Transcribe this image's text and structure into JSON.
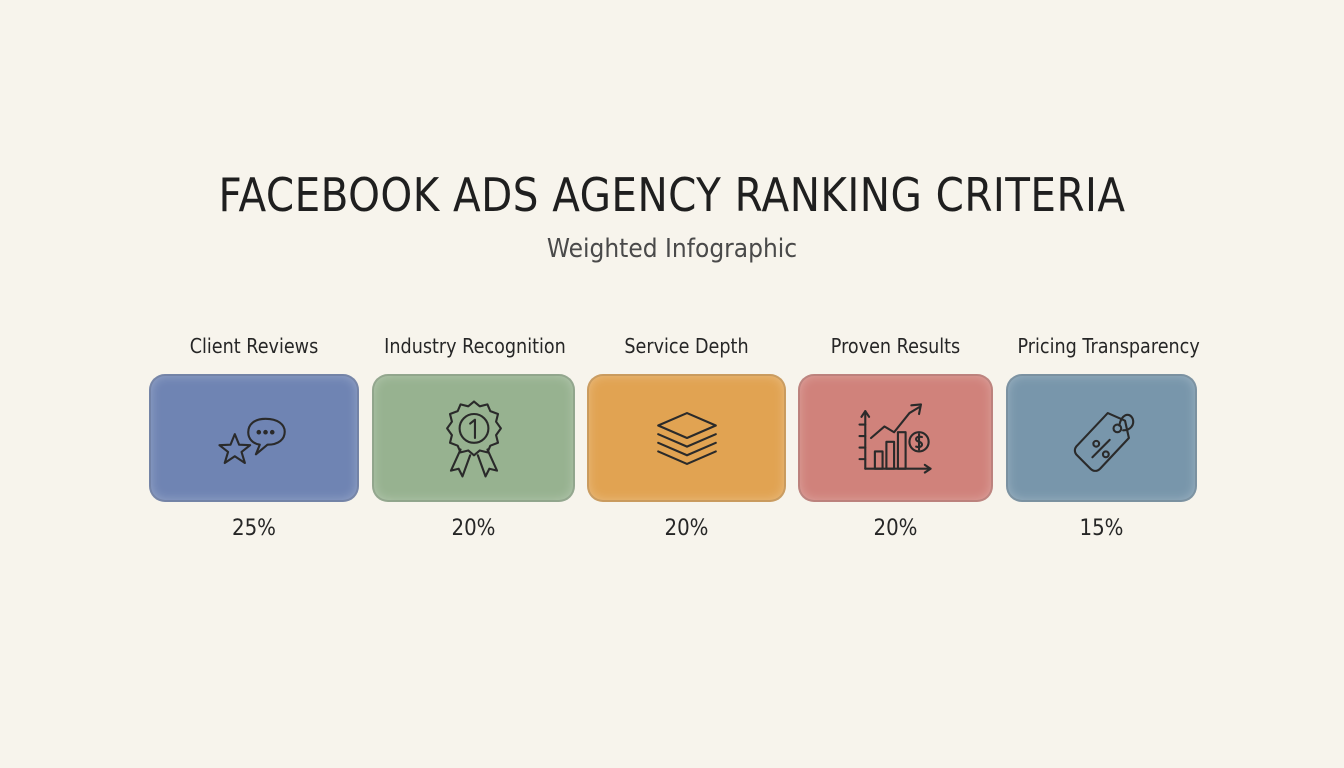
{
  "title": "FACEBOOK ADS AGENCY RANKING CRITERIA",
  "subtitle": "Weighted Infographic",
  "criteria": [
    {
      "label": "Client Reviews",
      "weight": "25%",
      "icon": "star-speech-bubble-icon",
      "color": "#6f84b3"
    },
    {
      "label": "Industry Recognition",
      "weight": "20%",
      "icon": "award-ribbon-icon",
      "color": "#97b290"
    },
    {
      "label": "Service Depth",
      "weight": "20%",
      "icon": "stacked-layers-icon",
      "color": "#e1a352"
    },
    {
      "label": "Proven Results",
      "weight": "20%",
      "icon": "growth-chart-dollar-icon",
      "color": "#d0827b"
    },
    {
      "label": "Pricing Transparency",
      "weight": "15%",
      "icon": "price-tag-percent-icon",
      "color": "#7896ab"
    }
  ]
}
